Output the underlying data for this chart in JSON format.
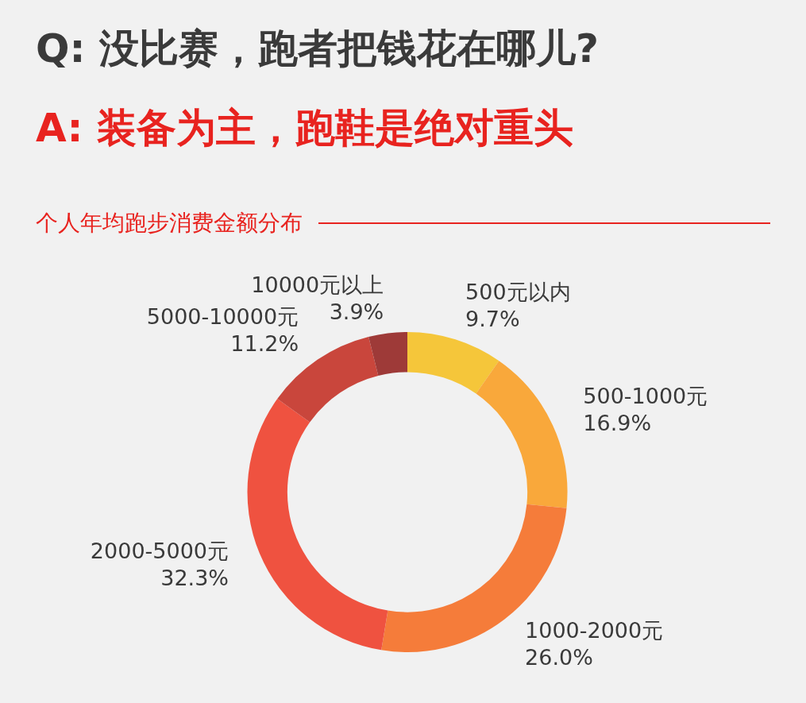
{
  "chart_data": {
    "type": "donut",
    "title": "Q: 没比赛，跑者把钱花在哪儿?",
    "subtitle": "A: 装备为主，跑鞋是绝对重头",
    "annotations": [
      "个人年均跑步消费金额分布"
    ],
    "categories": [
      "500元以内",
      "500-1000元",
      "1000-2000元",
      "2000-5000元",
      "5000-10000元",
      "10000元以上"
    ],
    "values": [
      9.7,
      16.9,
      26.0,
      32.3,
      11.2,
      3.9
    ],
    "value_labels": [
      "9.7%",
      "16.9%",
      "26.0%",
      "32.3%",
      "11.2%",
      "3.9%"
    ],
    "colors": [
      "#f5c63a",
      "#f9a83b",
      "#f57c3a",
      "#ef5240",
      "#c9463c",
      "#9e3a38"
    ],
    "legend": false
  }
}
